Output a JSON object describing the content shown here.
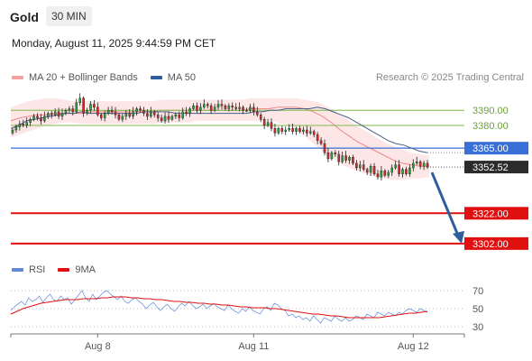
{
  "header": {
    "title": "Gold",
    "timeframe": "30 MIN",
    "datetime": "Monday, August 11, 2025 9:44:59 PM CET"
  },
  "legend_top": {
    "items": [
      {
        "label": "MA 20 + Bollinger Bands",
        "color": "#f4a0a0"
      },
      {
        "label": "MA 50",
        "color": "#2f5e9e"
      }
    ]
  },
  "credit": "Research © 2025 Trading Central",
  "legend_bottom": {
    "items": [
      {
        "label": "RSI",
        "color": "#5b8bd6"
      },
      {
        "label": "9MA",
        "color": "#e01010"
      }
    ]
  },
  "chart_data": [
    {
      "type": "candlestick",
      "y_range": [
        3290,
        3408
      ],
      "x_ticks": [
        "Aug 8",
        "Aug 11",
        "Aug 12"
      ],
      "x_tick_index": [
        24,
        68,
        113
      ],
      "n_bars": 118,
      "resistance_levels": [
        {
          "value": 3390.0,
          "label": "3390.00",
          "color": "#7fb84a"
        },
        {
          "value": 3380.0,
          "label": "3380.00",
          "color": "#7fb84a"
        },
        {
          "value": 3365.0,
          "label": "3365.00",
          "color": "#3a6fd8"
        }
      ],
      "support_levels": [
        {
          "value": 3322.0,
          "label": "3322.00",
          "color": "#e01010"
        },
        {
          "value": 3302.0,
          "label": "3302.00",
          "color": "#e01010"
        }
      ],
      "last_price": {
        "value": 3352.52,
        "label": "3352.52"
      },
      "closes": [
        3377,
        3379,
        3381,
        3380,
        3382,
        3384,
        3386,
        3385,
        3383,
        3386,
        3388,
        3387,
        3389,
        3386,
        3388,
        3390,
        3391,
        3389,
        3395,
        3398,
        3388,
        3390,
        3394,
        3392,
        3387,
        3385,
        3388,
        3390,
        3389,
        3387,
        3384,
        3386,
        3388,
        3386,
        3389,
        3391,
        3390,
        3388,
        3386,
        3389,
        3387,
        3385,
        3383,
        3386,
        3384,
        3386,
        3387,
        3385,
        3389,
        3388,
        3391,
        3393,
        3390,
        3392,
        3394,
        3393,
        3390,
        3392,
        3394,
        3393,
        3391,
        3393,
        3392,
        3391,
        3392,
        3390,
        3390,
        3392,
        3389,
        3387,
        3384,
        3380,
        3382,
        3378,
        3375,
        3378,
        3376,
        3377,
        3378,
        3376,
        3378,
        3376,
        3377,
        3375,
        3376,
        3374,
        3370,
        3368,
        3362,
        3358,
        3362,
        3361,
        3356,
        3360,
        3357,
        3359,
        3355,
        3352,
        3354,
        3351,
        3349,
        3353,
        3348,
        3346,
        3350,
        3347,
        3349,
        3352,
        3354,
        3348,
        3351,
        3348,
        3352,
        3355,
        3356,
        3353,
        3355,
        3352.5
      ],
      "ma50": [
        3378,
        3380,
        3383,
        3384,
        3385,
        3386,
        3387,
        3388,
        3388,
        3389,
        3388,
        3388,
        3388,
        3388,
        3388,
        3388,
        3388,
        3389,
        3389,
        3389,
        3389,
        3388,
        3388,
        3388,
        3388,
        3388,
        3388,
        3388,
        3388,
        3388,
        3388,
        3389,
        3389,
        3390,
        3390,
        3391,
        3391,
        3391,
        3391,
        3392,
        3391,
        3389,
        3387,
        3385,
        3382,
        3379,
        3376,
        3373,
        3370,
        3368,
        3367,
        3365,
        3363,
        3362
      ],
      "ma20": [
        3383,
        3385,
        3386,
        3387,
        3387,
        3388,
        3388,
        3388,
        3388,
        3389,
        3389,
        3389,
        3389,
        3389,
        3389,
        3389,
        3389,
        3390,
        3390,
        3390,
        3390,
        3390,
        3390,
        3390,
        3390,
        3390,
        3390,
        3391,
        3391,
        3391,
        3392,
        3392,
        3392,
        3391,
        3389,
        3386,
        3382,
        3377,
        3373,
        3369,
        3366,
        3363,
        3360,
        3357,
        3355,
        3354,
        3353,
        3353
      ],
      "bb_upper": [
        3392,
        3394,
        3396,
        3397,
        3398,
        3398,
        3397,
        3396,
        3396,
        3396,
        3396,
        3396,
        3396,
        3396,
        3396,
        3396,
        3396,
        3397,
        3397,
        3397,
        3397,
        3397,
        3397,
        3397,
        3397,
        3397,
        3397,
        3398,
        3398,
        3398,
        3398,
        3398,
        3398,
        3397,
        3396,
        3394,
        3391,
        3387,
        3383,
        3379,
        3376,
        3372,
        3369,
        3366,
        3364,
        3362,
        3361,
        3360
      ],
      "bb_lower": [
        3372,
        3374,
        3376,
        3378,
        3380,
        3381,
        3382,
        3382,
        3381,
        3381,
        3381,
        3381,
        3381,
        3381,
        3381,
        3381,
        3381,
        3382,
        3382,
        3382,
        3382,
        3383,
        3383,
        3383,
        3383,
        3383,
        3383,
        3383,
        3383,
        3383,
        3382,
        3380,
        3377,
        3373,
        3368,
        3363,
        3359,
        3355,
        3352,
        3350,
        3348,
        3346,
        3345,
        3344,
        3344,
        3345,
        3345,
        3346
      ]
    },
    {
      "type": "line",
      "y_ticks": [
        70,
        50,
        30
      ],
      "y_range": [
        22,
        80
      ],
      "rsi": [
        48,
        52,
        55,
        58,
        54,
        62,
        58,
        60,
        64,
        57,
        62,
        66,
        60,
        58,
        64,
        60,
        62,
        55,
        60,
        65,
        70,
        62,
        58,
        66,
        60,
        64,
        68,
        70,
        66,
        63,
        60,
        64,
        58,
        56,
        60,
        62,
        58,
        55,
        50,
        54,
        57,
        52,
        48,
        52,
        55,
        50,
        47,
        52,
        56,
        53,
        58,
        54,
        50,
        52,
        55,
        50,
        53,
        56,
        52,
        50,
        48,
        54,
        50,
        47,
        45,
        50,
        47,
        52,
        48,
        46,
        44,
        50,
        52,
        48,
        56,
        54,
        50,
        48,
        42,
        44,
        40,
        42,
        38,
        40,
        36,
        42,
        38,
        34,
        40,
        38,
        36,
        42,
        38,
        36,
        40,
        36,
        38,
        42,
        40,
        38,
        44,
        42,
        40,
        46,
        44,
        42,
        46,
        44,
        42,
        46,
        44,
        48,
        50,
        48,
        46,
        50,
        48,
        46
      ],
      "ma9": [
        44,
        47,
        50,
        52,
        54,
        56,
        57,
        58,
        59,
        60,
        60,
        60,
        61,
        61,
        61,
        62,
        62,
        63,
        63,
        63,
        62,
        62,
        61,
        61,
        60,
        60,
        59,
        58,
        58,
        57,
        57,
        56,
        56,
        55,
        55,
        54,
        54,
        53,
        52,
        52,
        51,
        51,
        51,
        50,
        50,
        49,
        48,
        47,
        46,
        45,
        44,
        44,
        43,
        42,
        42,
        41,
        40,
        40,
        40,
        40,
        40,
        40,
        41,
        42,
        43,
        44,
        45,
        45,
        46,
        47
      ]
    }
  ]
}
